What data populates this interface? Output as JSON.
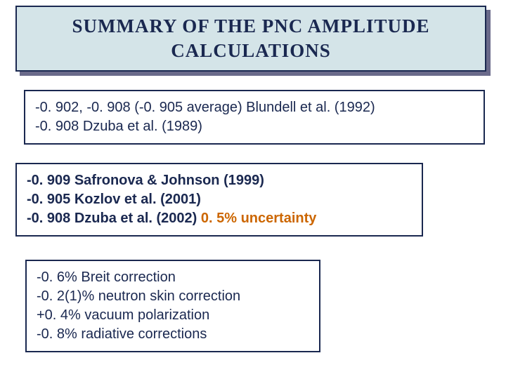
{
  "title": "Summary of the PNC amplitude calculations",
  "box1": {
    "line1": "-0. 902, -0. 908 (-0. 905 average) Blundell et al. (1992)",
    "line2": " -0. 908 Dzuba et al. (1989)"
  },
  "box2": {
    "line1": "-0. 909 Safronova & Johnson (1999)",
    "line2": "-0. 905 Kozlov et al. (2001)",
    "line3a": "-0. 908 Dzuba et al. (2002) ",
    "line3b": "0. 5% uncertainty"
  },
  "box3": {
    "line1": " -0. 6% Breit correction",
    "line2": " -0. 2(1)% neutron skin correction",
    "line3": "+0. 4% vacuum polarization",
    "line4": " -0. 8% radiative corrections"
  },
  "colors": {
    "title_bg": "#d4e4e8",
    "border": "#1a2850",
    "text": "#1a2850",
    "shadow": "#6a6a8a",
    "accent": "#cc6600"
  }
}
